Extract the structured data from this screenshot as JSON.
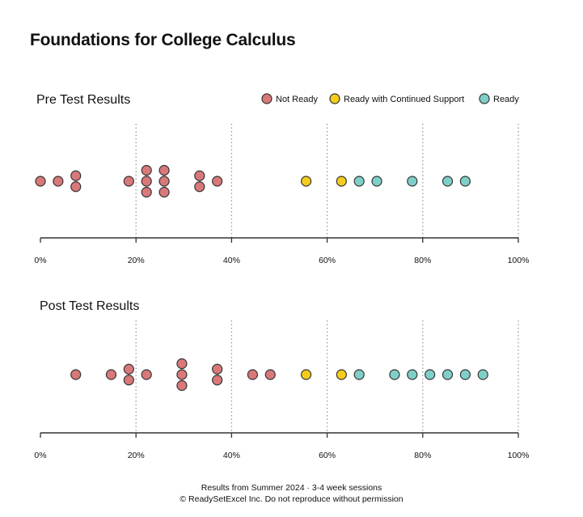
{
  "title": "Foundations for College Calculus",
  "footer": {
    "line1": "Results from Summer 2024  ·  3-4 week sessions",
    "line2": "© ReadySetExcel Inc.  Do not reproduce without permission"
  },
  "colors": {
    "Not Ready": "#d9787a",
    "Ready with Continued Support": "#f5cc1c",
    "Ready": "#7fcfc9",
    "stroke": "#333333"
  },
  "chart_data": [
    {
      "type": "scatter",
      "title": "Pre Test Results",
      "xlim": [
        0,
        100
      ],
      "x_ticks": [
        "0%",
        "20%",
        "40%",
        "60%",
        "80%",
        "100%"
      ],
      "grid": "vertical dotted",
      "legend": {
        "position": "top-right",
        "entries": [
          "Not Ready",
          "Ready with Continued Support",
          "Ready"
        ]
      },
      "series": [
        {
          "name": "Not Ready",
          "points": [
            [
              0,
              0
            ],
            [
              3.7,
              0
            ],
            [
              7.4,
              1
            ],
            [
              7.4,
              -1
            ],
            [
              18.5,
              0
            ],
            [
              22.2,
              2
            ],
            [
              22.2,
              0
            ],
            [
              22.2,
              -2
            ],
            [
              25.9,
              2
            ],
            [
              25.9,
              0
            ],
            [
              25.9,
              -2
            ],
            [
              33.3,
              1
            ],
            [
              33.3,
              -1
            ],
            [
              37,
              0
            ]
          ]
        },
        {
          "name": "Ready with Continued Support",
          "points": [
            [
              55.6,
              0
            ],
            [
              63,
              0
            ]
          ]
        },
        {
          "name": "Ready",
          "points": [
            [
              66.7,
              0
            ],
            [
              70.4,
              0
            ],
            [
              77.8,
              0
            ],
            [
              85.2,
              0
            ],
            [
              88.9,
              0
            ]
          ]
        }
      ]
    },
    {
      "type": "scatter",
      "title": "Post Test Results",
      "xlim": [
        0,
        100
      ],
      "x_ticks": [
        "0%",
        "20%",
        "40%",
        "60%",
        "80%",
        "100%"
      ],
      "grid": "vertical dotted",
      "series": [
        {
          "name": "Not Ready",
          "points": [
            [
              7.4,
              0
            ],
            [
              14.8,
              0
            ],
            [
              18.5,
              1
            ],
            [
              18.5,
              -1
            ],
            [
              22.2,
              0
            ],
            [
              29.6,
              2
            ],
            [
              29.6,
              0
            ],
            [
              29.6,
              -2
            ],
            [
              37,
              1
            ],
            [
              37,
              -1
            ],
            [
              44.4,
              0
            ],
            [
              48.1,
              0
            ]
          ]
        },
        {
          "name": "Ready with Continued Support",
          "points": [
            [
              55.6,
              0
            ],
            [
              63,
              0
            ]
          ]
        },
        {
          "name": "Ready",
          "points": [
            [
              66.7,
              0
            ],
            [
              74.1,
              0
            ],
            [
              77.8,
              0
            ],
            [
              81.5,
              0
            ],
            [
              85.2,
              0
            ],
            [
              88.9,
              0
            ],
            [
              92.6,
              0
            ]
          ]
        }
      ]
    }
  ]
}
